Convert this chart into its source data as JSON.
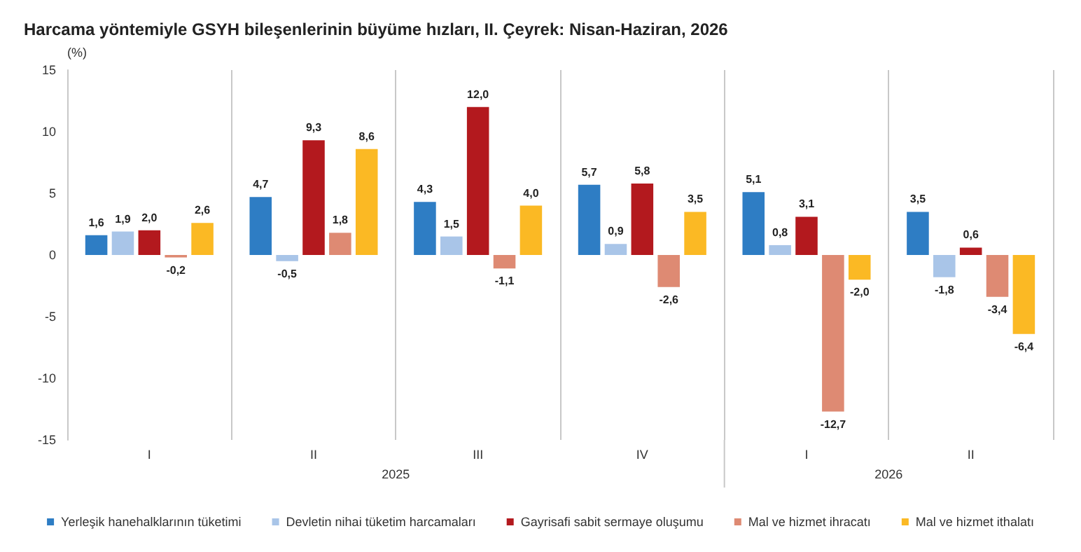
{
  "chart_data": {
    "type": "bar",
    "title": "Harcama yöntemiyle GSYH bileşenlerinin büyüme hızları, II. Çeyrek: Nisan-Haziran, 2026",
    "ylabel": "(%)",
    "categories": [
      "I",
      "II",
      "III",
      "IV",
      "I",
      "II"
    ],
    "annotations": [
      "2025",
      "2026"
    ],
    "ylim": [
      -15,
      15
    ],
    "yticks": [
      -15,
      -10,
      -5,
      0,
      5,
      10,
      15
    ],
    "grid": "x",
    "legend": "bottom",
    "series": [
      {
        "name": "Yerleşik hanehalklarının tüketimi",
        "color": "#2e7dc4",
        "values": [
          1.6,
          4.7,
          4.3,
          5.7,
          5.1,
          3.5
        ],
        "value_labels": [
          "1,6",
          "4,7",
          "4,3",
          "5,7",
          "5,1",
          "3,5"
        ]
      },
      {
        "name": "Devletin nihai tüketim harcamaları",
        "color": "#a9c5e8",
        "values": [
          1.9,
          -0.5,
          1.5,
          0.9,
          0.8,
          -1.8
        ],
        "value_labels": [
          "1,9",
          "-0,5",
          "1,5",
          "0,9",
          "0,8",
          "-1,8"
        ]
      },
      {
        "name": "Gayrisafi sabit sermaye oluşumu",
        "color": "#b3191e",
        "values": [
          2.0,
          9.3,
          12.0,
          5.8,
          3.1,
          0.6
        ],
        "value_labels": [
          "2,0",
          "9,3",
          "12,0",
          "5,8",
          "3,1",
          "0,6"
        ]
      },
      {
        "name": "Mal ve hizmet ihracatı",
        "color": "#de8a73",
        "values": [
          -0.2,
          1.8,
          -1.1,
          -2.6,
          -12.7,
          -3.4
        ],
        "value_labels": [
          "-0,2",
          "1,8",
          "-1,1",
          "-2,6",
          "-12,7",
          "-3,4"
        ]
      },
      {
        "name": "Mal ve hizmet ithalatı",
        "color": "#fbb924",
        "values": [
          2.6,
          8.6,
          4.0,
          3.5,
          -2.0,
          -6.4
        ],
        "value_labels": [
          "2,6",
          "8,6",
          "4,0",
          "3,5",
          "-2,0",
          "-6,4"
        ]
      }
    ]
  }
}
